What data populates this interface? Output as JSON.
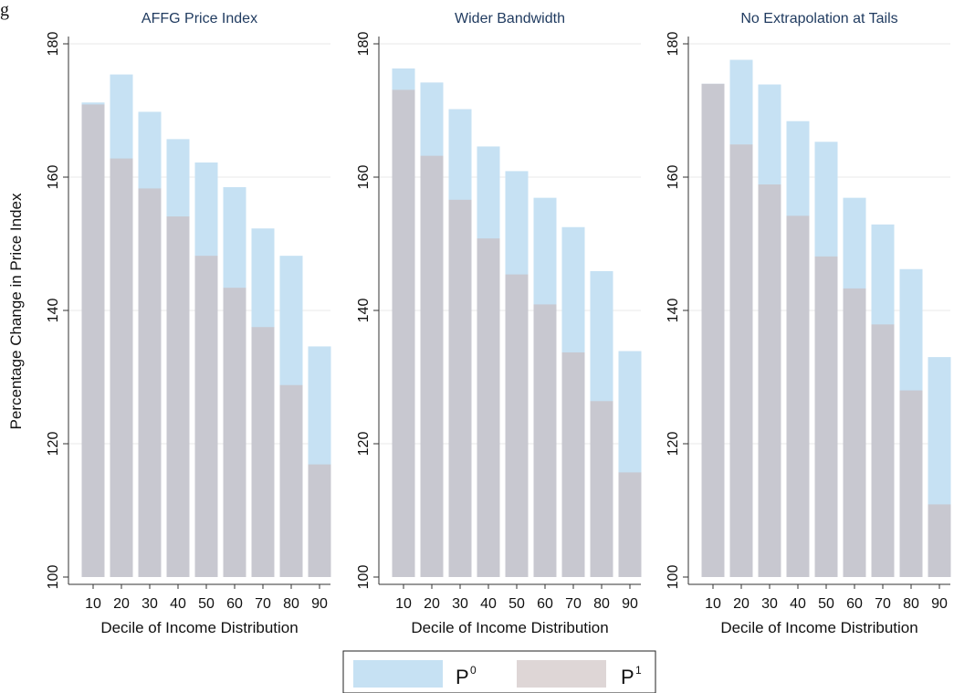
{
  "top_crop_text": "g",
  "chart_data": {
    "type": "bar",
    "ylabel": "Percentage Change in Price Index",
    "xlabel": "Decile of Income Distribution",
    "ylim": [
      100,
      180
    ],
    "yticks": [
      100,
      120,
      140,
      160,
      180
    ],
    "categories": [
      "10",
      "20",
      "30",
      "40",
      "50",
      "60",
      "70",
      "80",
      "90"
    ],
    "grid": true,
    "legend_position": "bottom-center",
    "colors": {
      "P0": "#c6e1f3",
      "P1": "#c8c8d0",
      "title": "#1f3a5f",
      "grid": "#eaeaea"
    },
    "legend": [
      {
        "base": "P",
        "sup": "0"
      },
      {
        "base": "P",
        "sup": "1"
      }
    ],
    "panels": [
      {
        "title": "AFFG Price Index",
        "series": [
          {
            "name": "P0",
            "values": [
              171.2,
              175.4,
              169.8,
              165.7,
              162.2,
              158.5,
              152.3,
              148.2,
              134.6
            ]
          },
          {
            "name": "P1",
            "values": [
              170.9,
              162.8,
              158.3,
              154.1,
              148.2,
              143.4,
              137.5,
              128.8,
              116.9
            ]
          }
        ]
      },
      {
        "title": "Wider Bandwidth",
        "series": [
          {
            "name": "P0",
            "values": [
              176.3,
              174.2,
              170.2,
              164.6,
              160.9,
              156.9,
              152.5,
              145.9,
              133.9
            ]
          },
          {
            "name": "P1",
            "values": [
              173.1,
              163.2,
              156.6,
              150.8,
              145.4,
              140.9,
              133.7,
              126.4,
              115.7
            ]
          }
        ]
      },
      {
        "title": "No Extrapolation at Tails",
        "series": [
          {
            "name": "P0",
            "values": [
              174.0,
              177.6,
              173.9,
              168.4,
              165.3,
              156.9,
              152.9,
              146.2,
              133.0
            ]
          },
          {
            "name": "P1",
            "values": [
              174.0,
              164.9,
              158.9,
              154.2,
              148.1,
              143.3,
              137.9,
              128.0,
              110.9
            ]
          }
        ]
      }
    ]
  }
}
